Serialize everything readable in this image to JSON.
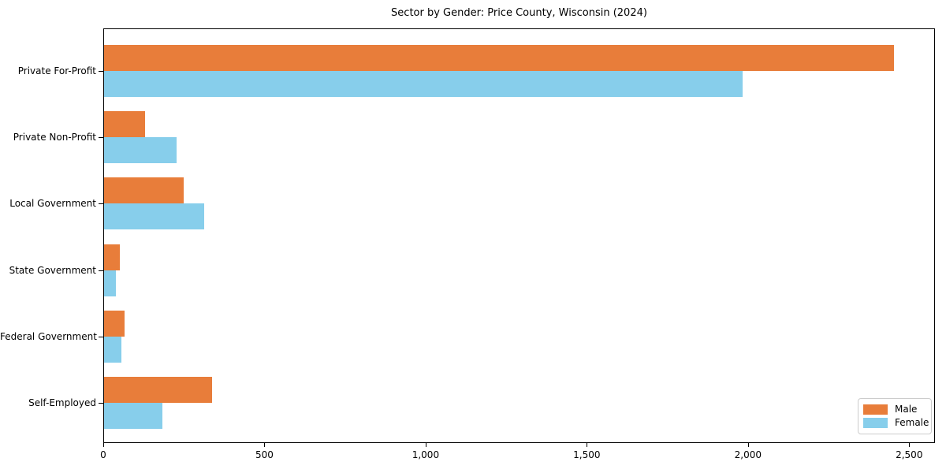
{
  "title": "Sector by Gender: Price County, Wisconsin (2024)",
  "chart_data": {
    "type": "bar",
    "orientation": "horizontal",
    "title": "Sector by Gender: Price County, Wisconsin (2024)",
    "categories": [
      "Private For-Profit",
      "Private Non-Profit",
      "Local Government",
      "State Government",
      "Federal Government",
      "Self-Employed"
    ],
    "series": [
      {
        "name": "Male",
        "color": "#e87d3a",
        "values": [
          2450,
          126,
          246,
          48,
          63,
          336
        ]
      },
      {
        "name": "Female",
        "color": "#87ceeb",
        "values": [
          1980,
          224,
          310,
          37,
          54,
          181
        ]
      }
    ],
    "xlabel": "",
    "ylabel": "",
    "xlim": [
      0,
      2580
    ],
    "xticks": [
      0,
      500,
      1000,
      1500,
      2000,
      2500
    ],
    "xtick_labels": [
      "0",
      "500",
      "1,000",
      "1,500",
      "2,000",
      "2,500"
    ],
    "grid": false,
    "legend_position": "lower right"
  },
  "legend": {
    "items": [
      {
        "label": "Male",
        "color": "#e87d3a"
      },
      {
        "label": "Female",
        "color": "#87ceeb"
      }
    ]
  }
}
